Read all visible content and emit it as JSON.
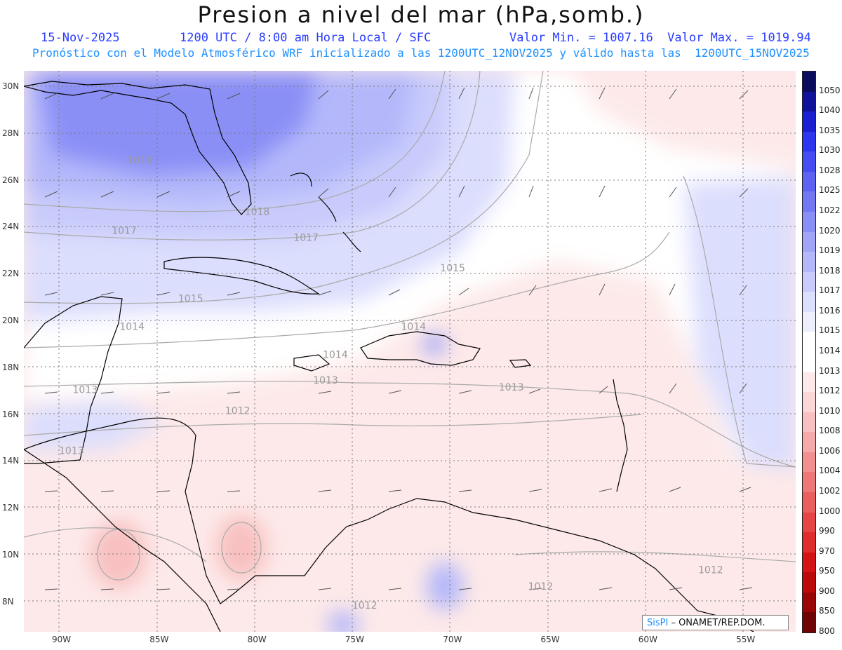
{
  "title": "Presion a nivel del mar (hPa,somb.)",
  "header": {
    "date": "15-Nov-2025",
    "time": "1200 UTC / 8:00 am Hora Local / SFC",
    "minmax": "Valor Min. = 1007.16  Valor Max. = 1019.94",
    "forecast": "Pronóstico con el Modelo Atmosférico WRF inicializado a las 1200UTC_12NOV2025 y válido hasta las  1200UTC_15NOV2025"
  },
  "lat_labels": [
    "30N",
    "28N",
    "26N",
    "24N",
    "22N",
    "20N",
    "18N",
    "16N",
    "14N",
    "12N",
    "10N",
    "8N"
  ],
  "lon_labels": [
    "90W",
    "85W",
    "80W",
    "75W",
    "70W",
    "65W",
    "60W",
    "55W"
  ],
  "isobar_labels": [
    {
      "text": "1019",
      "lon": -86.5,
      "lat": 26.7
    },
    {
      "text": "1018",
      "lon": -80.5,
      "lat": 24.5
    },
    {
      "text": "1017",
      "lon": -87.3,
      "lat": 23.7
    },
    {
      "text": "1017",
      "lon": -78.0,
      "lat": 23.4
    },
    {
      "text": "1015",
      "lon": -83.9,
      "lat": 20.8
    },
    {
      "text": "1015",
      "lon": -70.5,
      "lat": 22.1
    },
    {
      "text": "1014",
      "lon": -86.9,
      "lat": 19.6
    },
    {
      "text": "1014",
      "lon": -76.5,
      "lat": 18.4
    },
    {
      "text": "1014",
      "lon": -72.5,
      "lat": 19.6
    },
    {
      "text": "1013",
      "lon": -77.0,
      "lat": 17.3
    },
    {
      "text": "1013",
      "lon": -89.3,
      "lat": 16.9
    },
    {
      "text": "1013",
      "lon": -67.5,
      "lat": 17.0
    },
    {
      "text": "1013",
      "lon": -90.0,
      "lat": 14.3
    },
    {
      "text": "1012",
      "lon": -81.5,
      "lat": 16.0
    },
    {
      "text": "1012",
      "lon": -66.0,
      "lat": 8.5
    },
    {
      "text": "1012",
      "lon": -57.3,
      "lat": 9.2
    },
    {
      "text": "1012",
      "lon": -75.0,
      "lat": 7.7
    }
  ],
  "legend": [
    {
      "value": "1050",
      "color": "#0b0c5e"
    },
    {
      "value": "1040",
      "color": "#10139a"
    },
    {
      "value": "1035",
      "color": "#1a20d2"
    },
    {
      "value": "1030",
      "color": "#2d35ee"
    },
    {
      "value": "1028",
      "color": "#454df2"
    },
    {
      "value": "1025",
      "color": "#5c63f3"
    },
    {
      "value": "1022",
      "color": "#7278f4"
    },
    {
      "value": "1020",
      "color": "#8a8ff6"
    },
    {
      "value": "1019",
      "color": "#a1a5f8"
    },
    {
      "value": "1018",
      "color": "#b4b8fa"
    },
    {
      "value": "1017",
      "color": "#c8cbfb"
    },
    {
      "value": "1016",
      "color": "#dcdefd"
    },
    {
      "value": "1015",
      "color": "#eeeffe"
    },
    {
      "value": "1014",
      "color": "#ffffff"
    },
    {
      "value": "1013",
      "color": "#ffffff"
    },
    {
      "value": "1012",
      "color": "#fde9e9"
    },
    {
      "value": "1010",
      "color": "#fbd6d6"
    },
    {
      "value": "1008",
      "color": "#f8c0c0"
    },
    {
      "value": "1006",
      "color": "#f5a9a9"
    },
    {
      "value": "1004",
      "color": "#f29090"
    },
    {
      "value": "1002",
      "color": "#ee7777"
    },
    {
      "value": "1000",
      "color": "#ea5e5e"
    },
    {
      "value": "990",
      "color": "#e54545"
    },
    {
      "value": "970",
      "color": "#df2c2c"
    },
    {
      "value": "950",
      "color": "#d41414"
    },
    {
      "value": "900",
      "color": "#bb0a0a"
    },
    {
      "value": "850",
      "color": "#9a0606"
    },
    {
      "value": "800",
      "color": "#700404"
    }
  ],
  "credit": {
    "logo": "SisPI",
    "text": " – ONAMET/REP.DOM."
  }
}
